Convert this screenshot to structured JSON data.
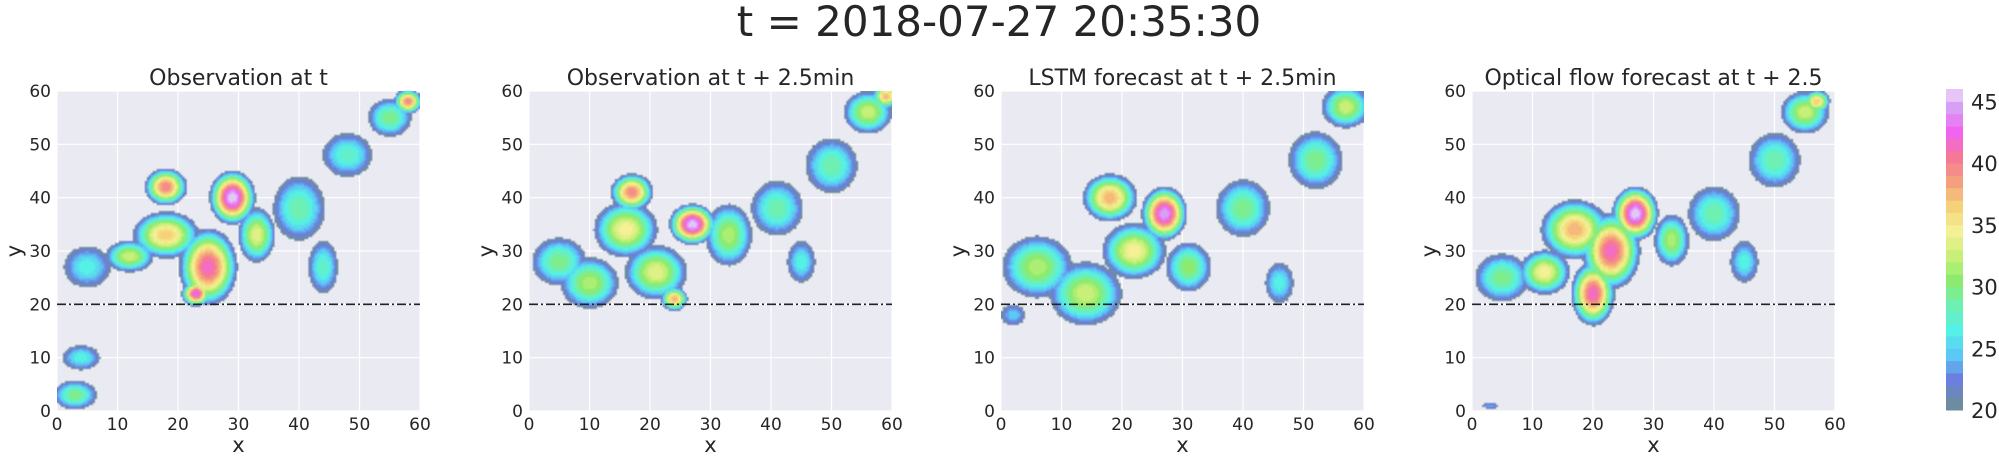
{
  "figure": {
    "title": "t = 2018-07-27 20:35:30"
  },
  "colors": {
    "panel_bg": "#EAEAF2",
    "grid": "#FFFFFF",
    "reference_line": "#222222"
  },
  "chart_data": [
    {
      "type": "heatmap",
      "title": "Observation at t",
      "xlabel": "x",
      "ylabel": "y",
      "xlim": [
        0,
        60
      ],
      "ylim": [
        0,
        60
      ],
      "xticks": [
        "0",
        "10",
        "20",
        "30",
        "40",
        "50",
        "60"
      ],
      "yticks": [
        "0",
        "10",
        "20",
        "30",
        "40",
        "50",
        "60"
      ],
      "reference_line_y": 20,
      "grid": true,
      "blobs": [
        {
          "x": 5,
          "y": 27,
          "v": 27,
          "sx": 5,
          "sy": 5
        },
        {
          "x": 12,
          "y": 29,
          "v": 33,
          "sx": 4,
          "sy": 3
        },
        {
          "x": 18,
          "y": 33,
          "v": 37,
          "sx": 5,
          "sy": 4
        },
        {
          "x": 18,
          "y": 42,
          "v": 40,
          "sx": 3,
          "sy": 3
        },
        {
          "x": 25,
          "y": 27,
          "v": 42,
          "sx": 4,
          "sy": 6
        },
        {
          "x": 23,
          "y": 22,
          "v": 43,
          "sx": 2,
          "sy": 2
        },
        {
          "x": 29,
          "y": 40,
          "v": 46,
          "sx": 3,
          "sy": 4
        },
        {
          "x": 33,
          "y": 33,
          "v": 34,
          "sx": 3,
          "sy": 5
        },
        {
          "x": 40,
          "y": 38,
          "v": 29,
          "sx": 5,
          "sy": 7
        },
        {
          "x": 44,
          "y": 27,
          "v": 28,
          "sx": 3,
          "sy": 6
        },
        {
          "x": 48,
          "y": 48,
          "v": 28,
          "sx": 5,
          "sy": 5
        },
        {
          "x": 55,
          "y": 55,
          "v": 30,
          "sx": 4,
          "sy": 4
        },
        {
          "x": 58,
          "y": 58,
          "v": 40,
          "sx": 2,
          "sy": 2
        },
        {
          "x": 4,
          "y": 10,
          "v": 27,
          "sx": 4,
          "sy": 3
        },
        {
          "x": 3,
          "y": 3,
          "v": 30,
          "sx": 4,
          "sy": 3
        }
      ]
    },
    {
      "type": "heatmap",
      "title": "Observation at t + 2.5min",
      "xlabel": "x",
      "ylabel": "y",
      "xlim": [
        0,
        60
      ],
      "ylim": [
        0,
        60
      ],
      "xticks": [
        "0",
        "10",
        "20",
        "30",
        "40",
        "50",
        "60"
      ],
      "yticks": [
        "0",
        "10",
        "20",
        "30",
        "40",
        "50",
        "60"
      ],
      "reference_line_y": 20,
      "grid": true,
      "blobs": [
        {
          "x": 5,
          "y": 28,
          "v": 30,
          "sx": 5,
          "sy": 5
        },
        {
          "x": 10,
          "y": 24,
          "v": 32,
          "sx": 5,
          "sy": 5
        },
        {
          "x": 16,
          "y": 34,
          "v": 35,
          "sx": 5,
          "sy": 5
        },
        {
          "x": 17,
          "y": 41,
          "v": 40,
          "sx": 3,
          "sy": 3
        },
        {
          "x": 21,
          "y": 26,
          "v": 34,
          "sx": 5,
          "sy": 5
        },
        {
          "x": 24,
          "y": 21,
          "v": 38,
          "sx": 2,
          "sy": 2
        },
        {
          "x": 27,
          "y": 35,
          "v": 46,
          "sx": 3,
          "sy": 3
        },
        {
          "x": 33,
          "y": 33,
          "v": 32,
          "sx": 4,
          "sy": 6
        },
        {
          "x": 41,
          "y": 38,
          "v": 29,
          "sx": 5,
          "sy": 6
        },
        {
          "x": 45,
          "y": 28,
          "v": 27,
          "sx": 3,
          "sy": 5
        },
        {
          "x": 50,
          "y": 46,
          "v": 29,
          "sx": 5,
          "sy": 6
        },
        {
          "x": 56,
          "y": 56,
          "v": 33,
          "sx": 4,
          "sy": 4
        },
        {
          "x": 59,
          "y": 59,
          "v": 38,
          "sx": 2,
          "sy": 2
        }
      ]
    },
    {
      "type": "heatmap",
      "title": "LSTM forecast at t + 2.5min",
      "xlabel": "x",
      "ylabel": "y",
      "xlim": [
        0,
        60
      ],
      "ylim": [
        0,
        60
      ],
      "xticks": [
        "0",
        "10",
        "20",
        "30",
        "40",
        "50",
        "60"
      ],
      "yticks": [
        "0",
        "10",
        "20",
        "30",
        "40",
        "50",
        "60"
      ],
      "reference_line_y": 20,
      "grid": true,
      "blobs": [
        {
          "x": 6,
          "y": 27,
          "v": 32,
          "sx": 6,
          "sy": 6
        },
        {
          "x": 14,
          "y": 22,
          "v": 33,
          "sx": 6,
          "sy": 6
        },
        {
          "x": 18,
          "y": 40,
          "v": 38,
          "sx": 4,
          "sy": 4
        },
        {
          "x": 22,
          "y": 30,
          "v": 35,
          "sx": 5,
          "sy": 5
        },
        {
          "x": 27,
          "y": 37,
          "v": 45,
          "sx": 3,
          "sy": 4
        },
        {
          "x": 31,
          "y": 27,
          "v": 31,
          "sx": 4,
          "sy": 5
        },
        {
          "x": 40,
          "y": 38,
          "v": 30,
          "sx": 5,
          "sy": 6
        },
        {
          "x": 46,
          "y": 24,
          "v": 27,
          "sx": 3,
          "sy": 5
        },
        {
          "x": 52,
          "y": 47,
          "v": 30,
          "sx": 5,
          "sy": 6
        },
        {
          "x": 57,
          "y": 57,
          "v": 33,
          "sx": 4,
          "sy": 4
        },
        {
          "x": 2,
          "y": 18,
          "v": 25,
          "sx": 3,
          "sy": 3
        }
      ]
    },
    {
      "type": "heatmap",
      "title": "Optical flow forecast at t + 2.5",
      "xlabel": "x",
      "ylabel": "y",
      "xlim": [
        0,
        60
      ],
      "ylim": [
        0,
        60
      ],
      "xticks": [
        "0",
        "10",
        "20",
        "30",
        "40",
        "50",
        "60"
      ],
      "yticks": [
        "0",
        "10",
        "20",
        "30",
        "40",
        "50",
        "60"
      ],
      "reference_line_y": 20,
      "grid": true,
      "blobs": [
        {
          "x": 5,
          "y": 25,
          "v": 30,
          "sx": 5,
          "sy": 5
        },
        {
          "x": 12,
          "y": 26,
          "v": 35,
          "sx": 4,
          "sy": 4
        },
        {
          "x": 17,
          "y": 34,
          "v": 38,
          "sx": 5,
          "sy": 5
        },
        {
          "x": 20,
          "y": 22,
          "v": 42,
          "sx": 3,
          "sy": 5
        },
        {
          "x": 23,
          "y": 30,
          "v": 42,
          "sx": 4,
          "sy": 6
        },
        {
          "x": 27,
          "y": 37,
          "v": 46,
          "sx": 3,
          "sy": 4
        },
        {
          "x": 33,
          "y": 32,
          "v": 32,
          "sx": 3,
          "sy": 5
        },
        {
          "x": 40,
          "y": 37,
          "v": 29,
          "sx": 5,
          "sy": 6
        },
        {
          "x": 45,
          "y": 28,
          "v": 27,
          "sx": 3,
          "sy": 5
        },
        {
          "x": 50,
          "y": 47,
          "v": 29,
          "sx": 5,
          "sy": 6
        },
        {
          "x": 55,
          "y": 56,
          "v": 33,
          "sx": 4,
          "sy": 4
        },
        {
          "x": 57,
          "y": 58,
          "v": 37,
          "sx": 2,
          "sy": 2
        },
        {
          "x": 3,
          "y": 1,
          "v": 24,
          "sx": 2,
          "sy": 1
        }
      ]
    }
  ],
  "colorbar": {
    "min": 20,
    "max": 46,
    "ticks": [
      "20",
      "25",
      "30",
      "35",
      "40",
      "45"
    ],
    "stops": [
      {
        "v": 20,
        "c": "#6E8CA0"
      },
      {
        "v": 22,
        "c": "#6A7FE0"
      },
      {
        "v": 24,
        "c": "#5CC8F5"
      },
      {
        "v": 26,
        "c": "#55F0E6"
      },
      {
        "v": 28,
        "c": "#6EF0B2"
      },
      {
        "v": 30,
        "c": "#8CEB6E"
      },
      {
        "v": 32,
        "c": "#C8F078"
      },
      {
        "v": 34,
        "c": "#F5F096"
      },
      {
        "v": 36,
        "c": "#F5D278"
      },
      {
        "v": 38,
        "c": "#F5A07D"
      },
      {
        "v": 40,
        "c": "#F57896"
      },
      {
        "v": 42,
        "c": "#F064F0"
      },
      {
        "v": 44,
        "c": "#D7A0F5"
      },
      {
        "v": 46,
        "c": "#F5EBFA"
      }
    ]
  }
}
